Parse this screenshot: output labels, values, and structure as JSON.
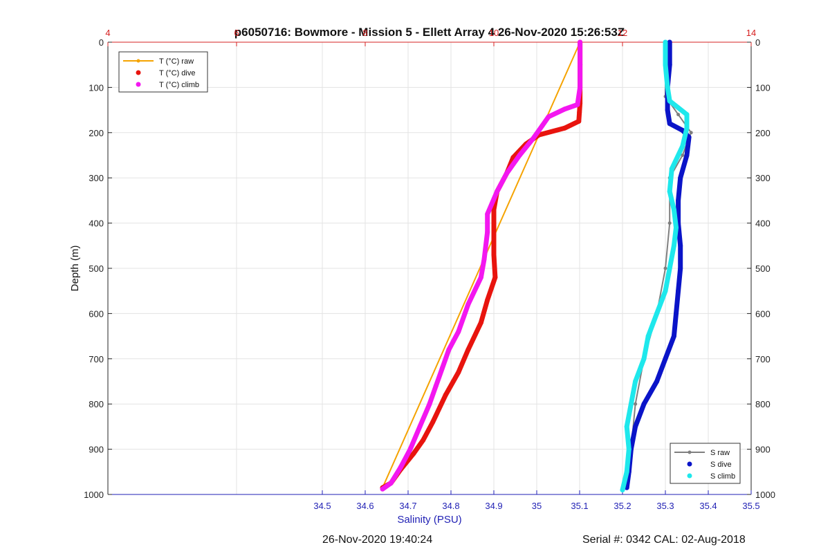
{
  "chart_data": {
    "type": "line",
    "title": "p6050716: Bowmore - Mission 5 - Ellett Array 4 26-Nov-2020 15:26:53Z",
    "ylabel": "Depth (m)",
    "xlabel": "Salinity (PSU)",
    "ylim": [
      0,
      1000
    ],
    "y_reversed": true,
    "y_ticks": [
      0,
      100,
      200,
      300,
      400,
      500,
      600,
      700,
      800,
      900,
      1000
    ],
    "y_tick_labels": [
      "0",
      "100",
      "200",
      "300",
      "400",
      "500",
      "600",
      "700",
      "800",
      "900",
      "1000"
    ],
    "salinity_axis": {
      "range": [
        34.0,
        35.5
      ],
      "ticks": [
        34.5,
        34.6,
        34.7,
        34.8,
        34.9,
        35,
        35.1,
        35.2,
        35.3,
        35.4,
        35.5
      ],
      "tick_labels": [
        "34.5",
        "34.6",
        "34.7",
        "34.8",
        "34.9",
        "35",
        "35.1",
        "35.2",
        "35.3",
        "35.4",
        "35.5"
      ],
      "color": "#1f1fb4"
    },
    "temperature_axis": {
      "range": [
        4,
        14
      ],
      "ticks": [
        4,
        6,
        8,
        10,
        12,
        14
      ],
      "tick_labels": [
        "4",
        "6",
        "8",
        "10",
        "12",
        "14"
      ],
      "color": "#d62020"
    },
    "grid": true,
    "series": [
      {
        "name": "T (°C) raw",
        "axis": "temperature",
        "color": "#f5a300",
        "style": "line",
        "points": [
          [
            11.34,
            0
          ],
          [
            8.27,
            985
          ]
        ]
      },
      {
        "name": "T (°C) dive",
        "axis": "temperature",
        "color": "#e8140e",
        "style": "dots",
        "points": [
          [
            11.34,
            0
          ],
          [
            11.34,
            50
          ],
          [
            11.34,
            100
          ],
          [
            11.34,
            135
          ],
          [
            11.33,
            155
          ],
          [
            11.32,
            175
          ],
          [
            11.1,
            190
          ],
          [
            10.7,
            205
          ],
          [
            10.5,
            225
          ],
          [
            10.3,
            255
          ],
          [
            10.2,
            290
          ],
          [
            10.05,
            330
          ],
          [
            10.0,
            370
          ],
          [
            10.0,
            420
          ],
          [
            10.0,
            470
          ],
          [
            10.02,
            520
          ],
          [
            9.9,
            570
          ],
          [
            9.8,
            620
          ],
          [
            9.6,
            680
          ],
          [
            9.45,
            730
          ],
          [
            9.25,
            780
          ],
          [
            9.05,
            840
          ],
          [
            8.9,
            880
          ],
          [
            8.75,
            910
          ],
          [
            8.55,
            945
          ],
          [
            8.4,
            975
          ],
          [
            8.27,
            985
          ]
        ]
      },
      {
        "name": "T (°C) climb",
        "axis": "temperature",
        "color": "#f317f0",
        "style": "dots",
        "points": [
          [
            11.34,
            0
          ],
          [
            11.34,
            50
          ],
          [
            11.34,
            100
          ],
          [
            11.3,
            138
          ],
          [
            11.1,
            148
          ],
          [
            10.85,
            165
          ],
          [
            10.75,
            185
          ],
          [
            10.6,
            215
          ],
          [
            10.4,
            250
          ],
          [
            10.2,
            290
          ],
          [
            10.05,
            330
          ],
          [
            9.9,
            380
          ],
          [
            9.9,
            420
          ],
          [
            9.85,
            480
          ],
          [
            9.8,
            520
          ],
          [
            9.6,
            580
          ],
          [
            9.45,
            640
          ],
          [
            9.3,
            680
          ],
          [
            9.2,
            720
          ],
          [
            9.1,
            760
          ],
          [
            9.0,
            800
          ],
          [
            8.85,
            850
          ],
          [
            8.7,
            900
          ],
          [
            8.55,
            940
          ],
          [
            8.4,
            975
          ],
          [
            8.27,
            988
          ]
        ]
      },
      {
        "name": "S raw",
        "axis": "salinity",
        "color": "#7f7f7f",
        "style": "line",
        "points": [
          [
            35.3,
            0
          ],
          [
            35.3,
            120
          ],
          [
            35.33,
            160
          ],
          [
            35.36,
            200
          ],
          [
            35.34,
            250
          ],
          [
            35.31,
            300
          ],
          [
            35.31,
            400
          ],
          [
            35.3,
            500
          ],
          [
            35.28,
            600
          ],
          [
            35.25,
            700
          ],
          [
            35.23,
            800
          ],
          [
            35.22,
            900
          ],
          [
            35.2,
            990
          ]
        ]
      },
      {
        "name": "S dive",
        "axis": "salinity",
        "color": "#0a14c8",
        "style": "dots",
        "points": [
          [
            35.31,
            0
          ],
          [
            35.31,
            50
          ],
          [
            35.305,
            100
          ],
          [
            35.305,
            150
          ],
          [
            35.31,
            180
          ],
          [
            35.34,
            195
          ],
          [
            35.355,
            210
          ],
          [
            35.35,
            250
          ],
          [
            35.335,
            300
          ],
          [
            35.33,
            350
          ],
          [
            35.33,
            400
          ],
          [
            35.335,
            450
          ],
          [
            35.335,
            500
          ],
          [
            35.33,
            550
          ],
          [
            35.325,
            600
          ],
          [
            35.32,
            650
          ],
          [
            35.3,
            700
          ],
          [
            35.28,
            750
          ],
          [
            35.25,
            800
          ],
          [
            35.23,
            850
          ],
          [
            35.22,
            900
          ],
          [
            35.215,
            950
          ],
          [
            35.21,
            985
          ]
        ]
      },
      {
        "name": "S climb",
        "axis": "salinity",
        "color": "#1ee8ec",
        "style": "dots",
        "points": [
          [
            35.3,
            0
          ],
          [
            35.3,
            50
          ],
          [
            35.305,
            100
          ],
          [
            35.31,
            130
          ],
          [
            35.33,
            145
          ],
          [
            35.35,
            160
          ],
          [
            35.35,
            190
          ],
          [
            35.34,
            230
          ],
          [
            35.315,
            280
          ],
          [
            35.31,
            330
          ],
          [
            35.32,
            370
          ],
          [
            35.325,
            410
          ],
          [
            35.32,
            450
          ],
          [
            35.31,
            500
          ],
          [
            35.3,
            550
          ],
          [
            35.28,
            600
          ],
          [
            35.26,
            650
          ],
          [
            35.25,
            700
          ],
          [
            35.23,
            750
          ],
          [
            35.22,
            800
          ],
          [
            35.21,
            850
          ],
          [
            35.215,
            900
          ],
          [
            35.21,
            950
          ],
          [
            35.2,
            990
          ]
        ]
      }
    ],
    "legends": [
      {
        "placement": "top-left",
        "entries": [
          "T (°C) raw",
          "T (°C) dive",
          "T (°C) climb"
        ]
      },
      {
        "placement": "bottom-right",
        "entries": [
          "S raw",
          "S dive",
          "S climb"
        ]
      }
    ]
  },
  "footer": {
    "date": "26-Nov-2020 19:40:24",
    "serial": "Serial #: 0342  CAL: 02-Aug-2018"
  }
}
